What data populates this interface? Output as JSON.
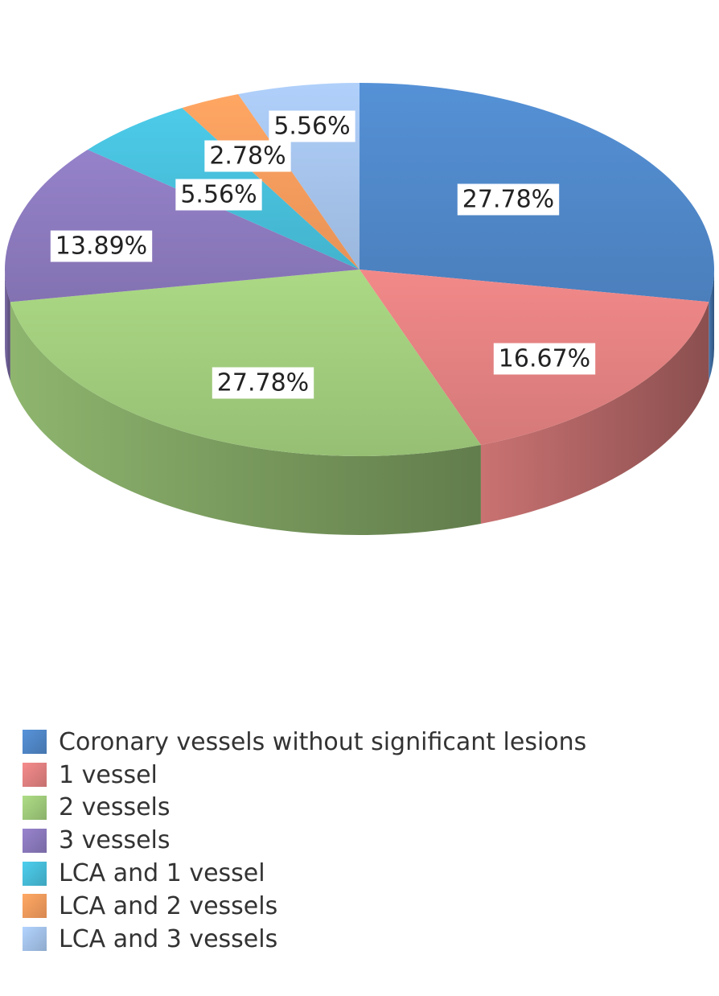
{
  "chart_data": {
    "type": "pie",
    "title": "",
    "categories": [
      "Coronary vessels without significant lesions",
      "1 vessel",
      "2 vessels",
      "3 vessels",
      "LCA and 1 vessel",
      "LCA and 2 vessels",
      "LCA and 3 vessels"
    ],
    "values": [
      27.78,
      16.67,
      27.78,
      13.89,
      5.56,
      2.78,
      5.56
    ],
    "data_labels": [
      "27.78%",
      "16.67%",
      "27.78%",
      "13.89%",
      "5.56%",
      "2.78%",
      "5.56%"
    ],
    "colors": [
      "#4f86c6",
      "#e07f7f",
      "#9ec97a",
      "#8a78bb",
      "#46bcd8",
      "#f49a5c",
      "#a3c1e8"
    ],
    "style": "3d",
    "legend_position": "bottom-left"
  }
}
